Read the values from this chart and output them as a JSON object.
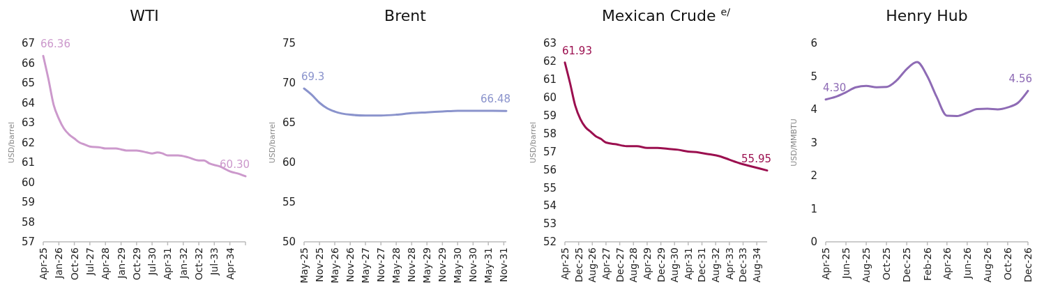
{
  "chart_data": [
    {
      "type": "line",
      "title": "WTI",
      "ylabel": "USD/barrel",
      "xlim": [
        "2025-04",
        "2035-01"
      ],
      "ylim": [
        57,
        67
      ],
      "yticks": [
        57,
        58,
        59,
        60,
        61,
        62,
        63,
        64,
        65,
        66,
        67
      ],
      "xticks": [
        {
          "value": "2025-04",
          "label": "Apr-25"
        },
        {
          "value": "2026-01",
          "label": "Jan-26"
        },
        {
          "value": "2026-10",
          "label": "Oct-26"
        },
        {
          "value": "2027-07",
          "label": "Jul-27"
        },
        {
          "value": "2028-04",
          "label": "Apr-28"
        },
        {
          "value": "2029-01",
          "label": "Jan-29"
        },
        {
          "value": "2029-10",
          "label": "Oct-29"
        },
        {
          "value": "2030-07",
          "label": "Jul-30"
        },
        {
          "value": "2031-04",
          "label": "Apr-31"
        },
        {
          "value": "2032-01",
          "label": "Jan-32"
        },
        {
          "value": "2032-10",
          "label": "Oct-32"
        },
        {
          "value": "2033-07",
          "label": "Jul-33"
        },
        {
          "value": "2034-04",
          "label": "Apr-34"
        },
        {
          "value": "2035-01",
          "label": null
        }
      ],
      "series": [
        {
          "color": "#cc99cc",
          "x": [
            "2025-04",
            "2025-07",
            "2025-10",
            "2026-01",
            "2026-04",
            "2026-07",
            "2026-10",
            "2027-01",
            "2027-04",
            "2027-07",
            "2028-01",
            "2028-04",
            "2028-10",
            "2029-01",
            "2029-04",
            "2029-10",
            "2030-04",
            "2030-07",
            "2030-10",
            "2031-01",
            "2031-04",
            "2031-10",
            "2032-04",
            "2032-10",
            "2033-01",
            "2033-04",
            "2033-10",
            "2034-04",
            "2034-10",
            "2035-01"
          ],
          "values": [
            66.36,
            65.2,
            63.9,
            63.2,
            62.7,
            62.4,
            62.2,
            62.0,
            61.9,
            61.8,
            61.75,
            61.7,
            61.7,
            61.65,
            61.6,
            61.6,
            61.5,
            61.45,
            61.5,
            61.45,
            61.35,
            61.35,
            61.25,
            61.1,
            61.1,
            60.95,
            60.8,
            60.55,
            60.4,
            60.3
          ],
          "value_labels": [
            "66.36",
            null,
            null,
            null,
            null,
            null,
            null,
            null,
            null,
            null,
            null,
            null,
            null,
            null,
            null,
            null,
            null,
            null,
            null,
            null,
            null,
            null,
            null,
            null,
            null,
            null,
            null,
            null,
            null,
            "60.30"
          ]
        }
      ]
    },
    {
      "type": "line",
      "title": "Brent",
      "ylabel": "USD/barrel",
      "xlim": [
        "2025-05",
        "2031-12"
      ],
      "ylim": [
        50,
        75
      ],
      "yticks": [
        50,
        55,
        60,
        65,
        70,
        75
      ],
      "xticks": [
        {
          "value": "2025-05",
          "label": "May-25"
        },
        {
          "value": "2025-11",
          "label": "Nov-25"
        },
        {
          "value": "2026-05",
          "label": "May-26"
        },
        {
          "value": "2026-11",
          "label": "Nov-26"
        },
        {
          "value": "2027-05",
          "label": "May-27"
        },
        {
          "value": "2027-11",
          "label": "Nov-27"
        },
        {
          "value": "2028-05",
          "label": "May-28"
        },
        {
          "value": "2028-11",
          "label": "Nov-28"
        },
        {
          "value": "2029-05",
          "label": "May-29"
        },
        {
          "value": "2029-11",
          "label": "Nov-29"
        },
        {
          "value": "2030-05",
          "label": "May-30"
        },
        {
          "value": "2030-11",
          "label": "Nov-30"
        },
        {
          "value": "2031-05",
          "label": "May-31"
        },
        {
          "value": "2031-11",
          "label": "Nov-31"
        }
      ],
      "series": [
        {
          "color": "#8a93cc",
          "x": [
            "2025-05",
            "2025-08",
            "2025-11",
            "2026-02",
            "2026-05",
            "2026-11",
            "2027-05",
            "2027-11",
            "2028-05",
            "2028-11",
            "2029-05",
            "2029-11",
            "2030-05",
            "2030-11",
            "2031-05",
            "2031-12"
          ],
          "values": [
            69.3,
            68.5,
            67.5,
            66.8,
            66.4,
            66.0,
            65.9,
            65.9,
            66.0,
            66.2,
            66.3,
            66.4,
            66.5,
            66.5,
            66.5,
            66.48
          ],
          "value_labels": [
            "69.3",
            null,
            null,
            null,
            null,
            null,
            null,
            null,
            null,
            null,
            null,
            null,
            null,
            null,
            null,
            "66.48"
          ]
        }
      ]
    },
    {
      "type": "line",
      "title": "Mexican Crude $^{e/}$",
      "ylabel": "USD/barrel",
      "xlim": [
        "2025-04",
        "2035-02"
      ],
      "ylim": [
        52,
        63
      ],
      "yticks": [
        52,
        53,
        54,
        55,
        56,
        57,
        58,
        59,
        60,
        61,
        62,
        63
      ],
      "xticks": [
        {
          "value": "2025-04",
          "label": "Apr-25"
        },
        {
          "value": "2025-12",
          "label": "Dec-25"
        },
        {
          "value": "2026-08",
          "label": "Aug-26"
        },
        {
          "value": "2027-04",
          "label": "Apr-27"
        },
        {
          "value": "2027-12",
          "label": "Dec-27"
        },
        {
          "value": "2028-08",
          "label": "Aug-28"
        },
        {
          "value": "2029-04",
          "label": "Apr-29"
        },
        {
          "value": "2029-12",
          "label": "Dec-29"
        },
        {
          "value": "2030-08",
          "label": "Aug-30"
        },
        {
          "value": "2031-04",
          "label": "Apr-31"
        },
        {
          "value": "2031-12",
          "label": "Dec-31"
        },
        {
          "value": "2032-08",
          "label": "Aug-32"
        },
        {
          "value": "2033-04",
          "label": "Apr-33"
        },
        {
          "value": "2033-12",
          "label": "Dec-33"
        },
        {
          "value": "2034-08",
          "label": "Aug-34"
        }
      ],
      "series": [
        {
          "color": "#9b0f4f",
          "x": [
            "2025-04",
            "2025-07",
            "2025-10",
            "2026-01",
            "2026-04",
            "2026-07",
            "2026-10",
            "2027-01",
            "2027-04",
            "2027-10",
            "2028-04",
            "2028-10",
            "2029-04",
            "2029-10",
            "2030-04",
            "2030-10",
            "2031-04",
            "2031-10",
            "2032-04",
            "2032-10",
            "2033-04",
            "2033-10",
            "2034-04",
            "2034-10",
            "2035-02"
          ],
          "values": [
            61.93,
            60.8,
            59.55,
            58.8,
            58.35,
            58.1,
            57.85,
            57.7,
            57.5,
            57.4,
            57.3,
            57.3,
            57.2,
            57.2,
            57.15,
            57.1,
            57.0,
            56.95,
            56.85,
            56.75,
            56.55,
            56.35,
            56.2,
            56.05,
            55.95
          ],
          "value_labels": [
            "61.93",
            null,
            null,
            null,
            null,
            null,
            null,
            null,
            null,
            null,
            null,
            null,
            null,
            null,
            null,
            null,
            null,
            null,
            null,
            null,
            null,
            null,
            null,
            null,
            "55.95"
          ]
        }
      ]
    },
    {
      "type": "line",
      "title": "Henry Hub",
      "ylabel": "USD/MMBTU",
      "xlim": [
        "2025-04",
        "2026-12"
      ],
      "ylim": [
        0,
        6
      ],
      "yticks": [
        0,
        1,
        2,
        3,
        4,
        5,
        6
      ],
      "xticks": [
        {
          "value": "2025-04",
          "label": "Apr-25"
        },
        {
          "value": "2025-06",
          "label": "Jun-25"
        },
        {
          "value": "2025-08",
          "label": "Aug-25"
        },
        {
          "value": "2025-10",
          "label": "Oct-25"
        },
        {
          "value": "2025-12",
          "label": "Dec-25"
        },
        {
          "value": "2026-02",
          "label": "Feb-26"
        },
        {
          "value": "2026-04",
          "label": "Apr-26"
        },
        {
          "value": "2026-06",
          "label": "Jun-26"
        },
        {
          "value": "2026-08",
          "label": "Aug-26"
        },
        {
          "value": "2026-10",
          "label": "Oct-26"
        },
        {
          "value": "2026-12",
          "label": "Dec-26"
        }
      ],
      "series": [
        {
          "color": "#8e6bb5",
          "x": [
            "2025-04",
            "2025-05",
            "2025-06",
            "2025-07",
            "2025-08",
            "2025-09",
            "2025-10",
            "2025-11",
            "2025-12",
            "2026-01",
            "2026-02",
            "2026-03",
            "2026-04",
            "2026-05",
            "2026-06",
            "2026-07",
            "2026-08",
            "2026-09",
            "2026-10",
            "2026-11",
            "2026-12"
          ],
          "values": [
            4.3,
            4.38,
            4.52,
            4.67,
            4.71,
            4.67,
            4.68,
            4.88,
            5.22,
            5.43,
            5.0,
            4.38,
            3.81,
            3.8,
            3.9,
            4.01,
            4.02,
            4.0,
            4.06,
            4.2,
            4.56
          ],
          "value_labels": [
            "4.30",
            null,
            null,
            null,
            null,
            null,
            null,
            null,
            null,
            null,
            null,
            null,
            null,
            null,
            null,
            null,
            null,
            null,
            null,
            null,
            "4.56"
          ]
        }
      ]
    }
  ]
}
